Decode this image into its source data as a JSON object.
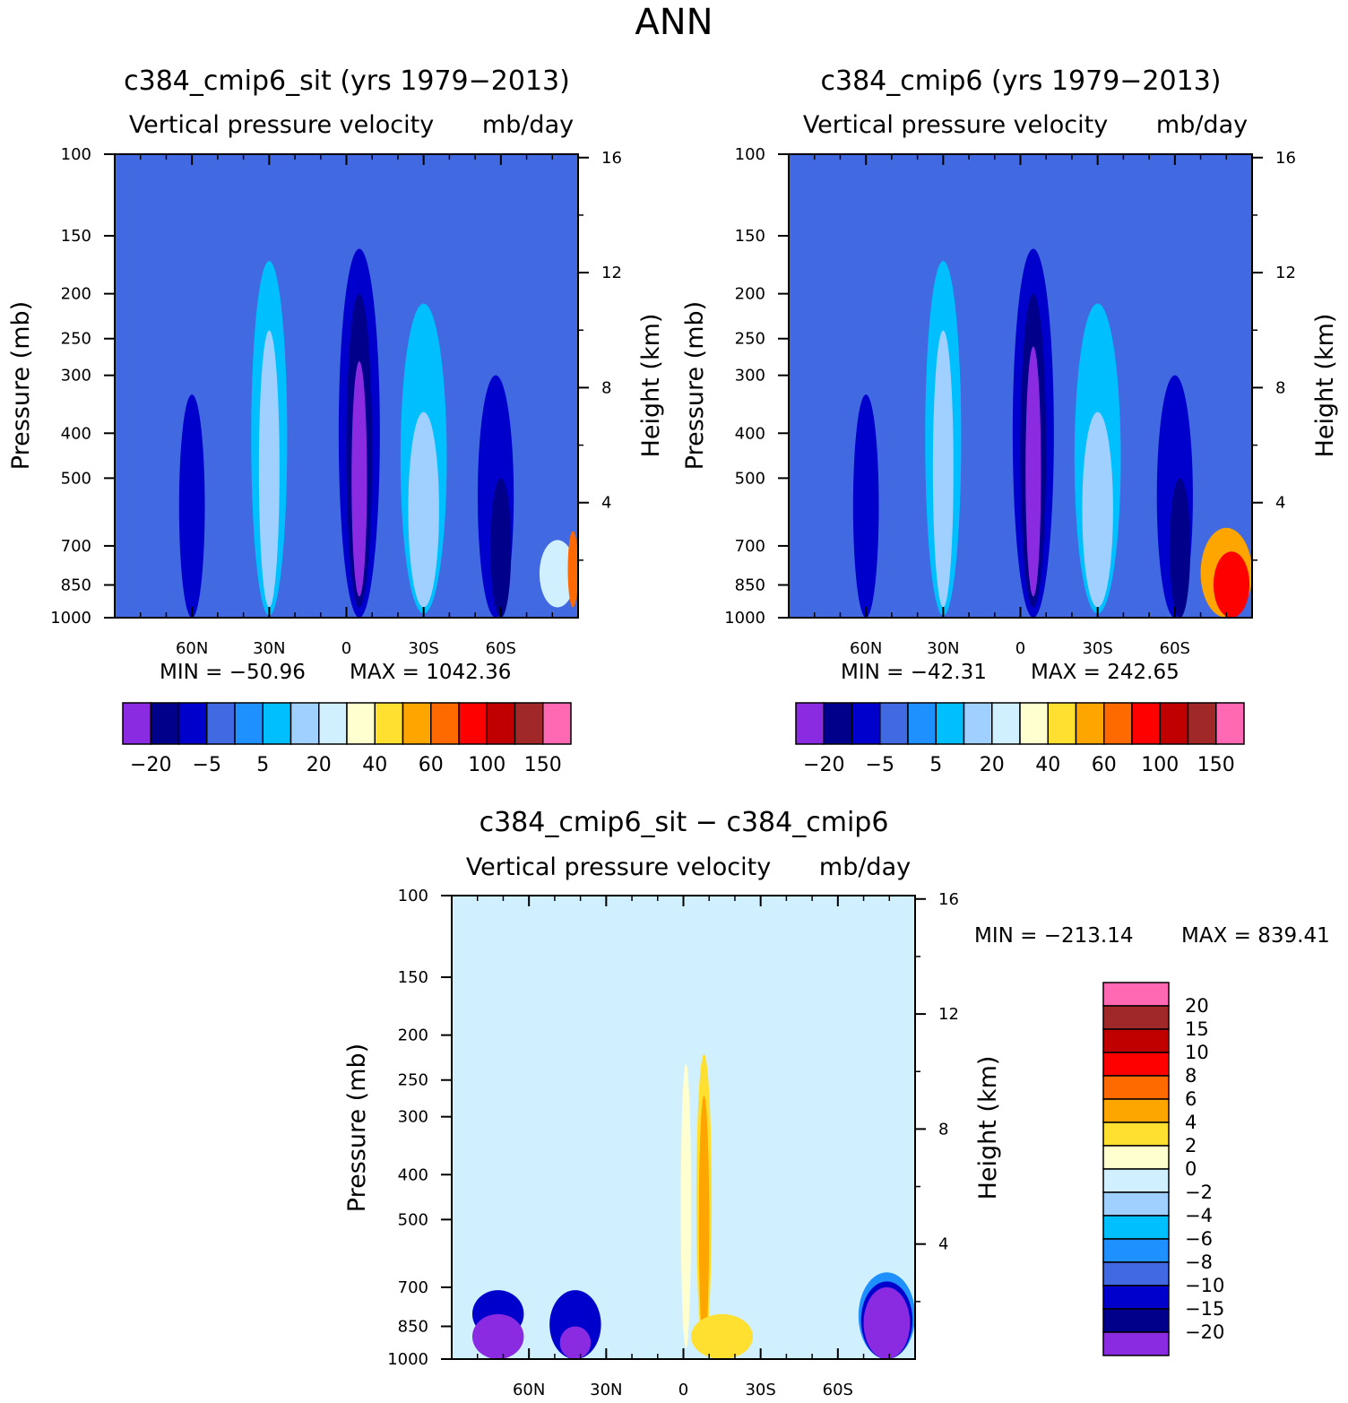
{
  "figure_title": "ANN",
  "chart_data": [
    {
      "type": "heatmap",
      "title": "c384_cmip6_sit (yrs 1979−2013)",
      "subtitle": "Vertical pressure velocity",
      "units": "mb/day",
      "ylabel": "Pressure (mb)",
      "y2label": "Height (km)",
      "x_ticks": [
        "60N",
        "30N",
        "0",
        "30S",
        "60S"
      ],
      "y_ticks": [
        "100",
        "150",
        "200",
        "250",
        "300",
        "400",
        "500",
        "700",
        "850",
        "1000"
      ],
      "y2_ticks": [
        "16",
        "12",
        "8",
        "4"
      ],
      "min_text": "MIN = −50.96",
      "max_text": "MAX = 1042.36",
      "colorbar_labels": [
        "−20",
        "−5",
        "5",
        "20",
        "40",
        "60",
        "100",
        "150"
      ],
      "features": [
        {
          "lat": -5,
          "p_top": 160,
          "p_bot": 1000,
          "w": 8,
          "level": 2
        },
        {
          "lat": -5,
          "p_top": 200,
          "p_bot": 950,
          "w": 5,
          "level": 1
        },
        {
          "lat": -5,
          "p_top": 280,
          "p_bot": 900,
          "w": 3,
          "level": 0
        },
        {
          "lat": -58,
          "p_top": 300,
          "p_bot": 1000,
          "w": 7,
          "level": 2
        },
        {
          "lat": -60,
          "p_top": 500,
          "p_bot": 1000,
          "w": 4,
          "level": 1
        },
        {
          "lat": 60,
          "p_top": 330,
          "p_bot": 1000,
          "w": 5,
          "level": 2
        },
        {
          "lat": 30,
          "p_top": 170,
          "p_bot": 990,
          "w": 7,
          "level": 5
        },
        {
          "lat": 30,
          "p_top": 240,
          "p_bot": 950,
          "w": 4,
          "level": 6
        },
        {
          "lat": -30,
          "p_top": 210,
          "p_bot": 980,
          "w": 9,
          "level": 5
        },
        {
          "lat": -30,
          "p_top": 360,
          "p_bot": 950,
          "w": 6,
          "level": 6
        },
        {
          "lat": -82,
          "p_top": 680,
          "p_bot": 950,
          "w": 7,
          "level": 7
        },
        {
          "lat": -88,
          "p_top": 650,
          "p_bot": 950,
          "w": 2,
          "level": 11
        }
      ]
    },
    {
      "type": "heatmap",
      "title": "c384_cmip6 (yrs 1979−2013)",
      "subtitle": "Vertical pressure velocity",
      "units": "mb/day",
      "ylabel": "Pressure (mb)",
      "y2label": "Height (km)",
      "x_ticks": [
        "60N",
        "30N",
        "0",
        "30S",
        "60S"
      ],
      "y_ticks": [
        "100",
        "150",
        "200",
        "250",
        "300",
        "400",
        "500",
        "700",
        "850",
        "1000"
      ],
      "y2_ticks": [
        "16",
        "12",
        "8",
        "4"
      ],
      "min_text": "MIN = −42.31",
      "max_text": "MAX = 242.65",
      "colorbar_labels": [
        "−20",
        "−5",
        "5",
        "20",
        "40",
        "60",
        "100",
        "150"
      ],
      "features": [
        {
          "lat": -5,
          "p_top": 160,
          "p_bot": 1000,
          "w": 8,
          "level": 2
        },
        {
          "lat": -5,
          "p_top": 200,
          "p_bot": 950,
          "w": 5,
          "level": 1
        },
        {
          "lat": -5,
          "p_top": 260,
          "p_bot": 900,
          "w": 3,
          "level": 0
        },
        {
          "lat": -60,
          "p_top": 300,
          "p_bot": 1000,
          "w": 7,
          "level": 2
        },
        {
          "lat": -62,
          "p_top": 500,
          "p_bot": 1000,
          "w": 4,
          "level": 1
        },
        {
          "lat": 60,
          "p_top": 330,
          "p_bot": 1000,
          "w": 5,
          "level": 2
        },
        {
          "lat": 30,
          "p_top": 170,
          "p_bot": 990,
          "w": 7,
          "level": 5
        },
        {
          "lat": 30,
          "p_top": 240,
          "p_bot": 950,
          "w": 4,
          "level": 6
        },
        {
          "lat": -30,
          "p_top": 210,
          "p_bot": 980,
          "w": 9,
          "level": 5
        },
        {
          "lat": -30,
          "p_top": 360,
          "p_bot": 950,
          "w": 6,
          "level": 6
        },
        {
          "lat": -80,
          "p_top": 640,
          "p_bot": 1000,
          "w": 10,
          "level": 10
        },
        {
          "lat": -82,
          "p_top": 720,
          "p_bot": 1000,
          "w": 7,
          "level": 12
        }
      ]
    },
    {
      "type": "heatmap",
      "title": "c384_cmip6_sit − c384_cmip6",
      "subtitle": "Vertical pressure velocity",
      "units": "mb/day",
      "ylabel": "Pressure (mb)",
      "y2label": "Height (km)",
      "x_ticks": [
        "60N",
        "30N",
        "0",
        "30S",
        "60S"
      ],
      "y_ticks": [
        "100",
        "150",
        "200",
        "250",
        "300",
        "400",
        "500",
        "700",
        "850",
        "1000"
      ],
      "y2_ticks": [
        "16",
        "12",
        "8",
        "4"
      ],
      "min_text": "MIN = −213.14",
      "max_text": "MAX = 839.41",
      "colorbar_labels": [
        "20",
        "15",
        "10",
        "8",
        "6",
        "4",
        "2",
        "0",
        "−2",
        "−4",
        "−6",
        "−8",
        "−10",
        "−15",
        "−20"
      ],
      "features": [
        {
          "lat": 45,
          "p_top": 100,
          "p_bot": 1000,
          "w": 28,
          "level": 7
        },
        {
          "lat": -43,
          "p_top": 100,
          "p_bot": 1000,
          "w": 18,
          "level": 7
        },
        {
          "lat": -13,
          "p_top": 120,
          "p_bot": 1000,
          "w": 3,
          "level": 7
        },
        {
          "lat": -1,
          "p_top": 230,
          "p_bot": 950,
          "w": 2,
          "level": 8
        },
        {
          "lat": -8,
          "p_top": 220,
          "p_bot": 950,
          "w": 3,
          "level": 9
        },
        {
          "lat": -8,
          "p_top": 270,
          "p_bot": 950,
          "w": 2,
          "level": 10
        },
        {
          "lat": 72,
          "p_top": 710,
          "p_bot": 900,
          "w": 10,
          "level": 2
        },
        {
          "lat": 72,
          "p_top": 800,
          "p_bot": 1000,
          "w": 10,
          "level": 0
        },
        {
          "lat": 42,
          "p_top": 710,
          "p_bot": 1000,
          "w": 10,
          "level": 2
        },
        {
          "lat": 42,
          "p_top": 850,
          "p_bot": 1000,
          "w": 6,
          "level": 0
        },
        {
          "lat": -15,
          "p_top": 800,
          "p_bot": 1000,
          "w": 12,
          "level": 9
        },
        {
          "lat": -79,
          "p_top": 650,
          "p_bot": 1000,
          "w": 11,
          "level": 4
        },
        {
          "lat": -79,
          "p_top": 680,
          "p_bot": 1000,
          "w": 10,
          "level": 2
        },
        {
          "lat": -79,
          "p_top": 700,
          "p_bot": 1000,
          "w": 9,
          "level": 0
        }
      ]
    }
  ],
  "colors": {
    "abs_palette": [
      "#8a2be2",
      "#00008b",
      "#0000cd",
      "#4169e1",
      "#1e90ff",
      "#00bfff",
      "#a0d0ff",
      "#d0f0ff",
      "#ffffd0",
      "#ffe030",
      "#ffa500",
      "#ff6a00",
      "#ff0000",
      "#c00000",
      "#a02828",
      "#ff69b4"
    ],
    "abs_background": 3,
    "diff_palette": [
      "#8a2be2",
      "#00008b",
      "#0000cd",
      "#4169e1",
      "#1e90ff",
      "#00bfff",
      "#a0d0ff",
      "#d0f0ff",
      "#ffffd0",
      "#ffe030",
      "#ffa500",
      "#ff6a00",
      "#ff0000",
      "#c00000",
      "#a02828",
      "#ff69b4"
    ],
    "diff_background": 7
  }
}
